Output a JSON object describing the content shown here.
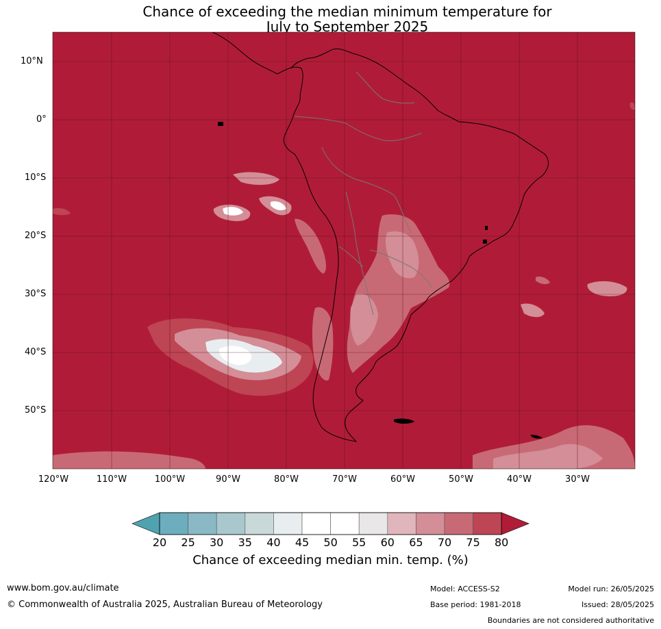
{
  "title_line1": "Chance of exceeding the median minimum temperature for",
  "title_line2": "July to September 2025",
  "map": {
    "background_color": "#b01c37",
    "lat_labels": [
      "10°N",
      "0°",
      "10°S",
      "20°S",
      "30°S",
      "40°S",
      "50°S"
    ],
    "lon_labels": [
      "120°W",
      "110°W",
      "100°W",
      "90°W",
      "80°W",
      "70°W",
      "60°W",
      "50°W",
      "40°W",
      "30°W"
    ]
  },
  "colorbar": {
    "ticks": [
      "20",
      "25",
      "30",
      "35",
      "40",
      "45",
      "50",
      "55",
      "60",
      "65",
      "70",
      "75",
      "80"
    ],
    "colors": [
      "#4fa2b0",
      "#6caebe",
      "#8ab8c5",
      "#a9c8cd",
      "#c9d9da",
      "#e8eef0",
      "#ffffff",
      "#ffffff",
      "#e9e7e8",
      "#e0b5bb",
      "#d38e97",
      "#c86a75",
      "#be4553",
      "#b01c37"
    ],
    "label": "Chance of exceeding median min. temp. (%)"
  },
  "footer": {
    "website": "www.bom.gov.au/climate",
    "copyright": "© Commonwealth of Australia 2025, Australian Bureau of Meteorology",
    "model": "Model: ACCESS-S2",
    "base_period": "Base period: 1981-2018",
    "model_run": "Model run: 26/05/2025",
    "issued": "Issued: 28/05/2025",
    "disclaimer": "Boundaries are not considered authoritative"
  }
}
